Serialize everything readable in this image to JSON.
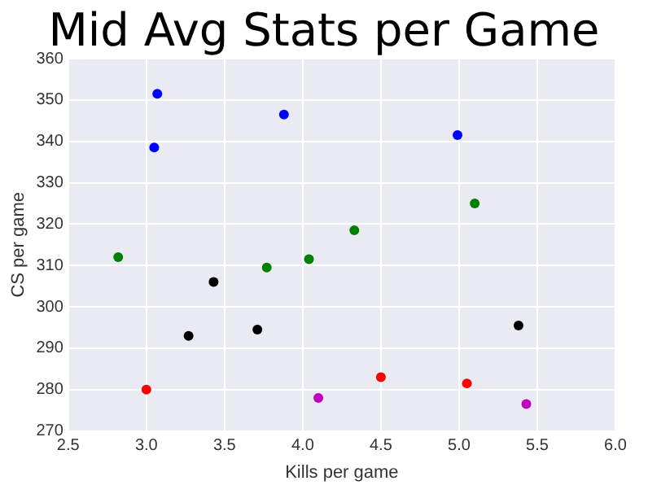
{
  "chart_data": {
    "type": "scatter",
    "title": "Mid Avg Stats per Game",
    "xlabel": "Kills per game",
    "ylabel": "CS per game",
    "series": [
      {
        "color": "#0000ff",
        "x": [
          3.07,
          3.05,
          3.88,
          4.99
        ],
        "values": [
          351.5,
          338.5,
          346.5,
          341.5
        ]
      },
      {
        "color": "#008000",
        "x": [
          2.82,
          3.77,
          4.04,
          4.33,
          5.1
        ],
        "values": [
          312,
          309.5,
          311.5,
          318.5,
          325
        ]
      },
      {
        "color": "#000000",
        "x": [
          3.43,
          3.27,
          3.71,
          5.38
        ],
        "values": [
          306,
          293,
          294.5,
          295.5
        ]
      },
      {
        "color": "#ff0000",
        "x": [
          3.0,
          4.5,
          5.05
        ],
        "values": [
          280,
          283,
          281.5
        ]
      },
      {
        "color": "#bf00bf",
        "x": [
          4.1,
          5.43
        ],
        "values": [
          278,
          276.5
        ]
      }
    ],
    "xlim": [
      2.5,
      6.0
    ],
    "xticks": [
      {
        "value": 2.5,
        "label": "2.5"
      },
      {
        "value": 3,
        "label": "3.0"
      },
      {
        "value": 3.5,
        "label": "3.5"
      },
      {
        "value": 4,
        "label": "4.0"
      },
      {
        "value": 4.5,
        "label": "4.5"
      },
      {
        "value": 5,
        "label": "5.0"
      },
      {
        "value": 5.5,
        "label": "5.5"
      },
      {
        "value": 6,
        "label": "6.0"
      }
    ],
    "ylim": [
      270,
      360
    ],
    "yticks": [
      270,
      280,
      290,
      300,
      310,
      320,
      330,
      340,
      350,
      360
    ],
    "grid": true,
    "marker": "circle",
    "legend": false
  }
}
